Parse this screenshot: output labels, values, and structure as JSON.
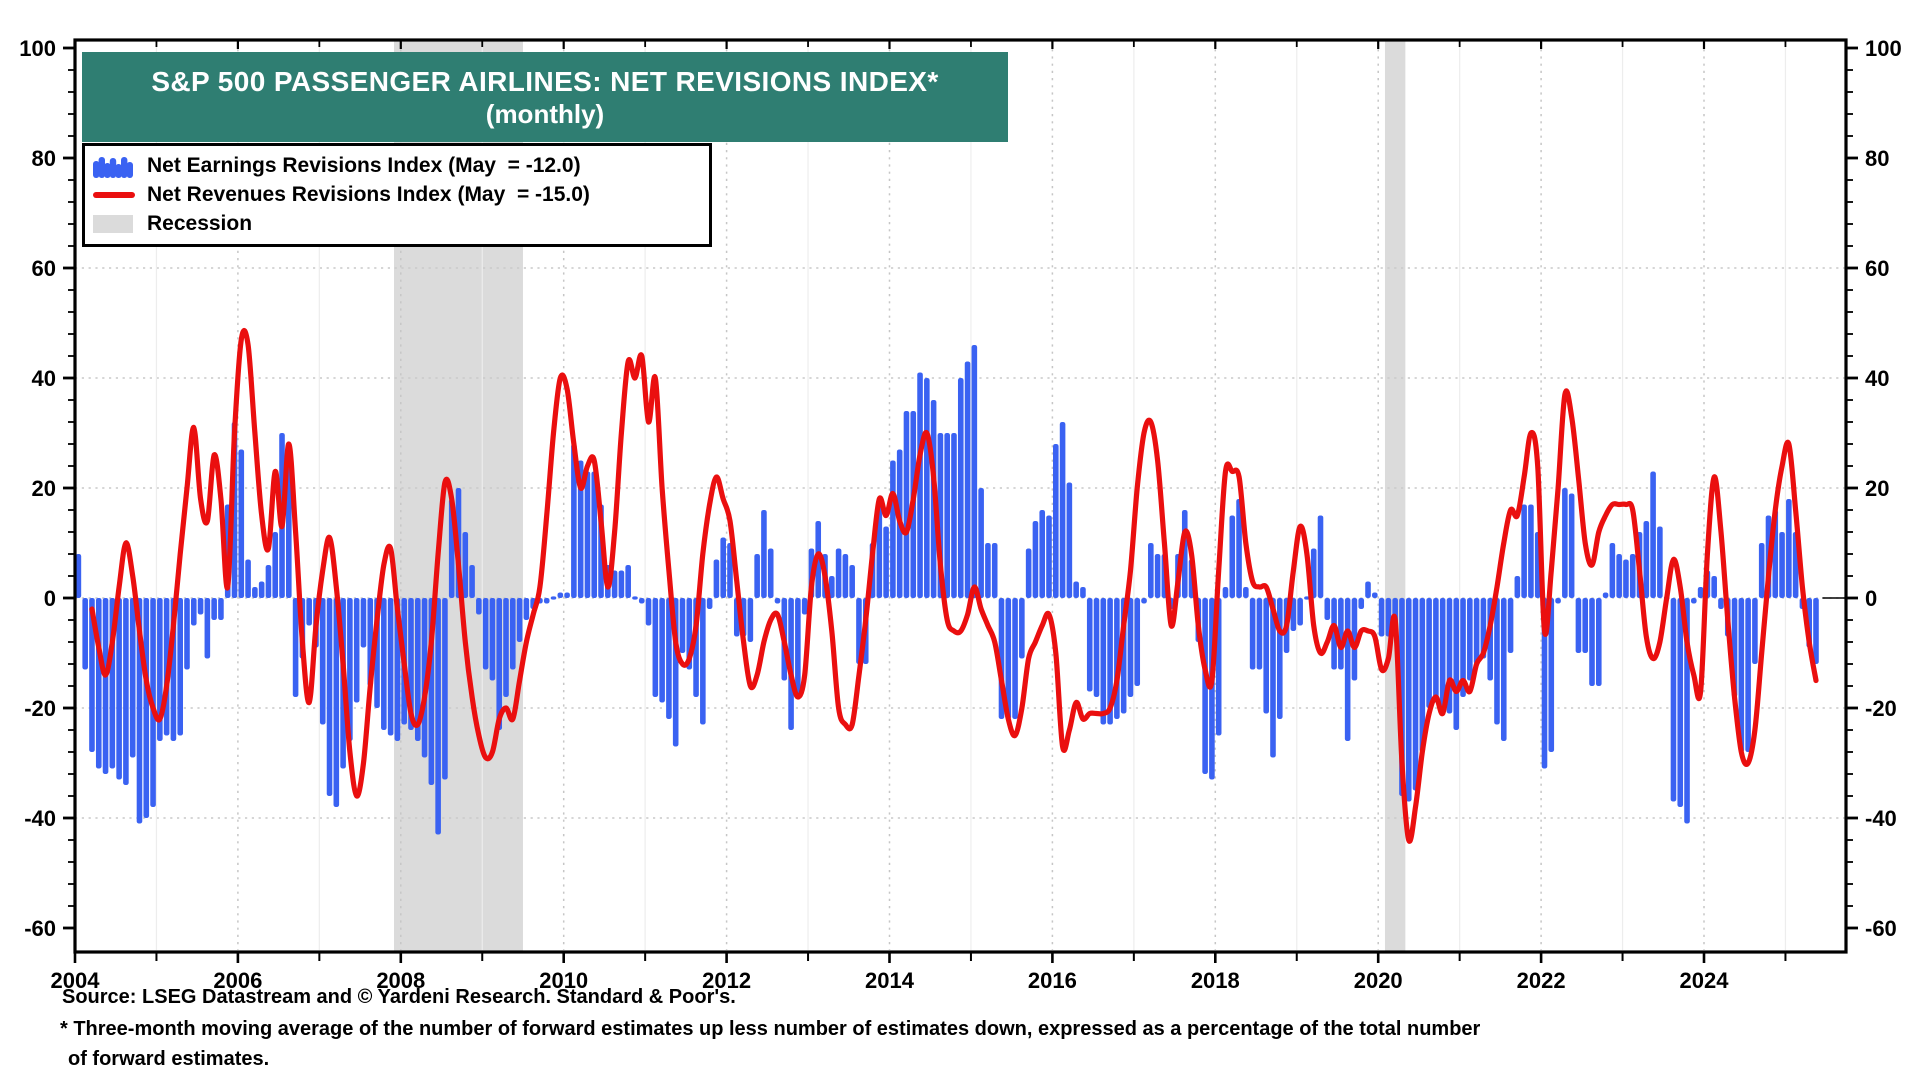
{
  "title": {
    "line1": "S&P 500 PASSENGER AIRLINES: NET REVISIONS INDEX*",
    "line2": "(monthly)"
  },
  "legend": {
    "earnings_label": "Net Earnings Revisions Index (May  = -12.0)",
    "revenues_label": "Net Revenues Revisions Index (May  = -15.0)",
    "recession_label": "Recession"
  },
  "footer": {
    "source": "Source: LSEG Datastream and © Yardeni Research. Standard & Poor's.",
    "note_line1": "* Three-month moving average of the number of forward estimates up less number of estimates down, expressed as a percentage of the total number",
    "note_line2": "of forward estimates."
  },
  "colors": {
    "banner_bg": "#2F7E72",
    "bar_blue": "#3A62F2",
    "line_red": "#EA0F0F",
    "recession_gray": "#DBDBDB",
    "grid_gray": "#C9C9C9",
    "year_dash_gray": "#C6C6C6",
    "year_faint_gray": "#EDEDED",
    "axis_black": "#000000"
  },
  "axis": {
    "y_ticks": [
      100,
      80,
      60,
      40,
      20,
      0,
      -20,
      -40,
      -60
    ],
    "y_grid_values": [
      60,
      40,
      20,
      0,
      -20,
      -40
    ],
    "y_minor_step": 4,
    "x_label_years": [
      2004,
      2006,
      2008,
      2010,
      2012,
      2014,
      2016,
      2018,
      2020,
      2022,
      2024
    ],
    "ylim": [
      -60,
      100
    ]
  },
  "chart_data": {
    "type": "bar+line",
    "title": "S&P 500 PASSENGER AIRLINES: NET REVISIONS INDEX* (monthly)",
    "start_year": 2004,
    "start_month": 1,
    "end_label": "2025-05",
    "ylim": [
      -60,
      100
    ],
    "grid": "dotted horizontal at 60,40,20,0,-20,-40; dashed vertical at even years",
    "legend_position": "top-left",
    "recessions_month_index": [
      [
        47,
        66
      ],
      [
        193,
        196
      ]
    ],
    "recession_periods": [
      "2007-12 to 2009-06",
      "2020-02 to 2020-04"
    ],
    "series": [
      {
        "name": "Net Earnings Revisions Index",
        "style": "bar",
        "latest": -12.0,
        "values": [
          8,
          -13,
          -28,
          -31,
          -32,
          -31,
          -33,
          -34,
          -29,
          -41,
          -40,
          -38,
          -26,
          -25,
          -26,
          -25,
          -13,
          -5,
          -3,
          -11,
          -4,
          -4,
          17,
          32,
          27,
          7,
          2,
          3,
          6,
          12,
          30,
          27,
          -18,
          -11,
          -5,
          -9,
          -23,
          -36,
          -38,
          -31,
          -26,
          -19,
          -9,
          -16,
          -20,
          -24,
          -25,
          -26,
          -23,
          -24,
          -26,
          -29,
          -34,
          -43,
          -33,
          18,
          20,
          12,
          6,
          -3,
          -13,
          -15,
          -24,
          -18,
          -13,
          -8,
          -4,
          -2,
          -1,
          -1,
          0,
          1,
          1,
          28,
          25,
          23,
          23,
          17,
          6,
          5,
          5,
          6,
          0,
          -1,
          -5,
          -18,
          -19,
          -22,
          -27,
          -10,
          -13,
          -18,
          -23,
          -2,
          7,
          11,
          10,
          -7,
          -7,
          -8,
          8,
          16,
          9,
          -1,
          -15,
          -24,
          -18,
          -3,
          9,
          14,
          8,
          4,
          9,
          8,
          6,
          -12,
          -12,
          10,
          17,
          13,
          25,
          27,
          34,
          34,
          41,
          40,
          36,
          30,
          30,
          30,
          40,
          43,
          46,
          20,
          10,
          10,
          -22,
          -22,
          -22,
          -11,
          9,
          14,
          16,
          15,
          28,
          32,
          21,
          3,
          2,
          -17,
          -18,
          -23,
          -23,
          -22,
          -21,
          -18,
          -16,
          -1,
          10,
          8,
          8,
          -2,
          8,
          16,
          7,
          -8,
          -32,
          -33,
          -25,
          2,
          15,
          18,
          2,
          -13,
          -13,
          -21,
          -29,
          -22,
          -10,
          -6,
          -5,
          0,
          9,
          15,
          -4,
          -13,
          -13,
          -26,
          -15,
          -2,
          3,
          1,
          -7,
          -7,
          -7,
          -36,
          -37,
          -35,
          -28,
          -20,
          -19,
          -20,
          -21,
          -24,
          -18,
          -15,
          -12,
          -11,
          -15,
          -23,
          -26,
          -10,
          4,
          17,
          17,
          12,
          -31,
          -28,
          -1,
          20,
          19,
          -10,
          -10,
          -16,
          -16,
          1,
          10,
          8,
          7,
          8,
          12,
          14,
          23,
          13,
          0,
          -37,
          -38,
          -41,
          -1,
          2,
          5,
          4,
          -2,
          -7,
          -18,
          -28,
          -28,
          -12,
          10,
          15,
          16,
          12,
          18,
          12,
          -2,
          -9,
          -12
        ]
      },
      {
        "name": "Net Revenues Revisions Index",
        "style": "line",
        "latest": -15.0,
        "values": [
          null,
          null,
          -2,
          -9,
          -14,
          -8,
          2,
          10,
          4,
          -6,
          -15,
          -20,
          -22,
          -16,
          -5,
          8,
          20,
          31,
          18,
          14,
          26,
          18,
          2,
          30,
          47,
          46,
          30,
          15,
          9,
          23,
          13,
          28,
          12,
          -8,
          -19,
          -5,
          5,
          11,
          2,
          -12,
          -28,
          -36,
          -30,
          -16,
          -4,
          6,
          9,
          -2,
          -12,
          -21,
          -23,
          -18,
          -8,
          8,
          21,
          18,
          6,
          -8,
          -18,
          -25,
          -29,
          -28,
          -22,
          -20,
          -22,
          -15,
          -8,
          -3,
          2,
          15,
          30,
          40,
          38,
          28,
          20,
          24,
          25,
          14,
          2,
          12,
          30,
          43,
          40,
          44,
          32,
          40,
          20,
          5,
          -8,
          -12,
          -11,
          -5,
          8,
          17,
          22,
          18,
          14,
          3,
          -8,
          -16,
          -14,
          -8,
          -4,
          -3,
          -8,
          -14,
          -18,
          -14,
          2,
          8,
          4,
          -6,
          -20,
          -23,
          -23,
          -14,
          -4,
          8,
          18,
          15,
          19,
          14,
          12,
          18,
          26,
          30,
          22,
          6,
          -4,
          -6,
          -6,
          -3,
          2,
          -2,
          -5,
          -8,
          -15,
          -22,
          -25,
          -20,
          -11,
          -8,
          -5,
          -3,
          -10,
          -27,
          -24,
          -19,
          -22,
          -21,
          -21,
          -21,
          -20,
          -15,
          -5,
          5,
          20,
          30,
          32,
          25,
          10,
          -5,
          3,
          12,
          8,
          -5,
          -13,
          -15,
          5,
          23,
          23,
          22,
          10,
          3,
          2,
          2,
          -2,
          -6,
          -5,
          5,
          13,
          8,
          -5,
          -10,
          -8,
          -5,
          -9,
          -6,
          -9,
          -6,
          -6,
          -7,
          -13,
          -11,
          -4,
          -30,
          -44,
          -38,
          -28,
          -21,
          -18,
          -21,
          -15,
          -17,
          -15,
          -17,
          -12,
          -10,
          -5,
          2,
          10,
          16,
          15,
          22,
          30,
          24,
          -6,
          5,
          20,
          37,
          33,
          22,
          10,
          6,
          12,
          15,
          17,
          17,
          17,
          16,
          5,
          -7,
          -11,
          -8,
          0,
          7,
          2,
          -8,
          -14,
          -17,
          8,
          22,
          12,
          -4,
          -18,
          -28,
          -30,
          -24,
          -10,
          4,
          16,
          24,
          28,
          16,
          2,
          -8,
          -15
        ]
      }
    ]
  }
}
